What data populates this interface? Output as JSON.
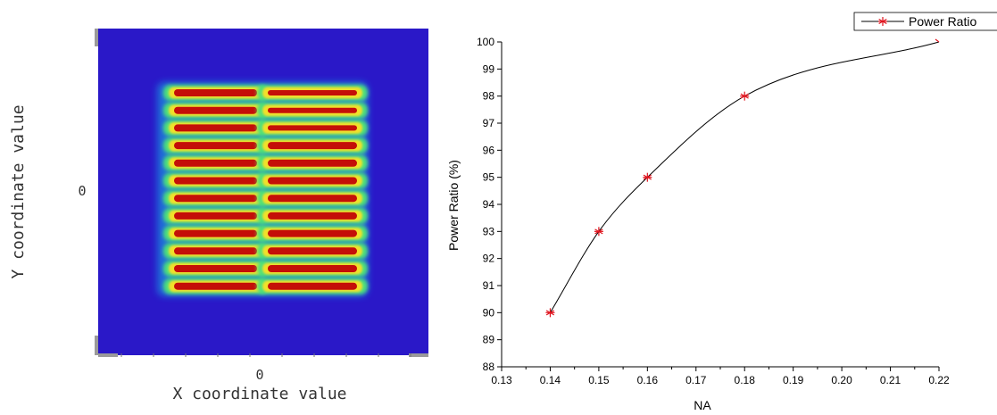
{
  "chart_data": [
    {
      "type": "heatmap",
      "xlabel": "X coordinate value",
      "ylabel": "Y coordinate value",
      "x_ticks": [
        "0"
      ],
      "y_ticks": [
        "0"
      ],
      "colors": {
        "background": "#2a18c8",
        "low": "#18b4e6",
        "mid": "#4ee07a",
        "high": "#f2e02a",
        "peak": "#c40f08"
      },
      "stripes": {
        "columns": 2,
        "rows": 12
      }
    },
    {
      "type": "line",
      "xlabel": "NA",
      "ylabel": "Power Ratio (%)",
      "xlim": [
        0.13,
        0.22
      ],
      "ylim": [
        88,
        100
      ],
      "x_ticks": [
        "0.13",
        "0.14",
        "0.15",
        "0.16",
        "0.17",
        "0.18",
        "0.19",
        "0.20",
        "0.21",
        "0.22"
      ],
      "y_ticks": [
        "88",
        "89",
        "90",
        "91",
        "92",
        "93",
        "94",
        "95",
        "96",
        "97",
        "98",
        "99",
        "100"
      ],
      "legend_position": "top-right",
      "series": [
        {
          "name": "Power Ratio",
          "marker": "asterisk",
          "marker_color": "#e0141e",
          "line_color": "#000000",
          "x": [
            0.14,
            0.15,
            0.16,
            0.18,
            0.22
          ],
          "y": [
            90,
            93,
            95,
            98,
            100
          ]
        }
      ]
    }
  ]
}
